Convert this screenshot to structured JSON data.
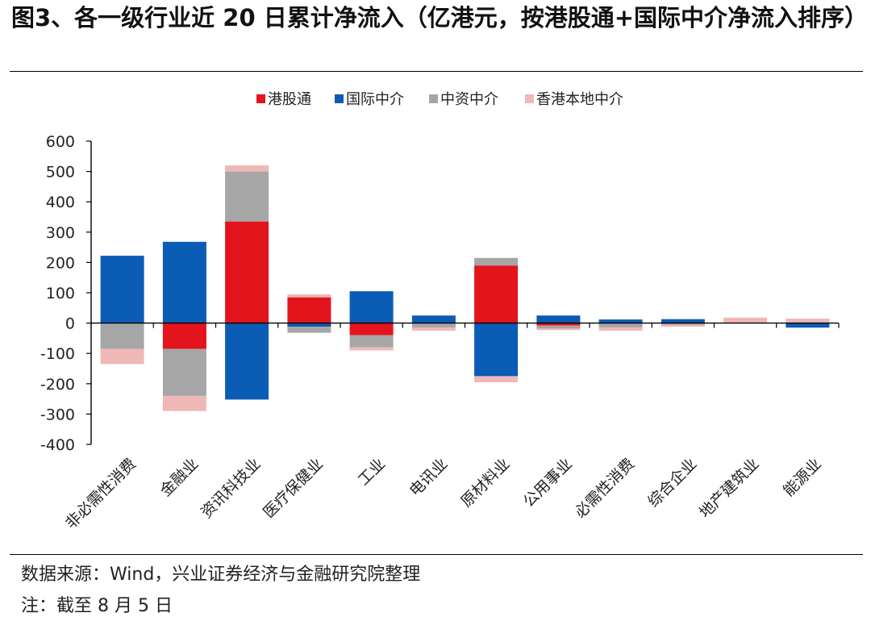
{
  "title": "图3、各一级行业近 20 日累计净流入（亿港元，按港股通+国际中介净流入排序）",
  "footer": {
    "source": "数据来源：Wind，兴业证券经济与金融研究院整理",
    "note": "注：截至 8 月 5 日"
  },
  "chart_data": {
    "type": "bar",
    "stacked": true,
    "title": "",
    "xlabel": "",
    "ylabel": "",
    "ylim": [
      -400,
      600
    ],
    "yticks": [
      600,
      500,
      400,
      300,
      200,
      100,
      0,
      -100,
      -200,
      -300,
      -400
    ],
    "grid": false,
    "legend_position": "top",
    "categories": [
      "非必需性消费",
      "金融业",
      "资讯科技业",
      "医疗保健业",
      "工业",
      "电讯业",
      "原材料业",
      "公用事业",
      "必需性消费",
      "综合企业",
      "地产建筑业",
      "能源业"
    ],
    "series": [
      {
        "name": "港股通",
        "color": "#e3141c",
        "values": [
          0,
          -85,
          335,
          85,
          -40,
          0,
          190,
          -8,
          0,
          0,
          0,
          0
        ]
      },
      {
        "name": "国际中介",
        "color": "#0b5cb4",
        "values": [
          222,
          268,
          -252,
          -12,
          105,
          25,
          -175,
          25,
          12,
          13,
          0,
          -15
        ]
      },
      {
        "name": "中资中介",
        "color": "#a6a6a6",
        "values": [
          -85,
          -155,
          165,
          -20,
          -40,
          -15,
          25,
          -10,
          -15,
          -5,
          0,
          0
        ]
      },
      {
        "name": "香港本地中介",
        "color": "#f0b7b7",
        "values": [
          -50,
          -50,
          20,
          10,
          -10,
          -10,
          -20,
          -5,
          -10,
          -7,
          18,
          15
        ]
      }
    ]
  }
}
